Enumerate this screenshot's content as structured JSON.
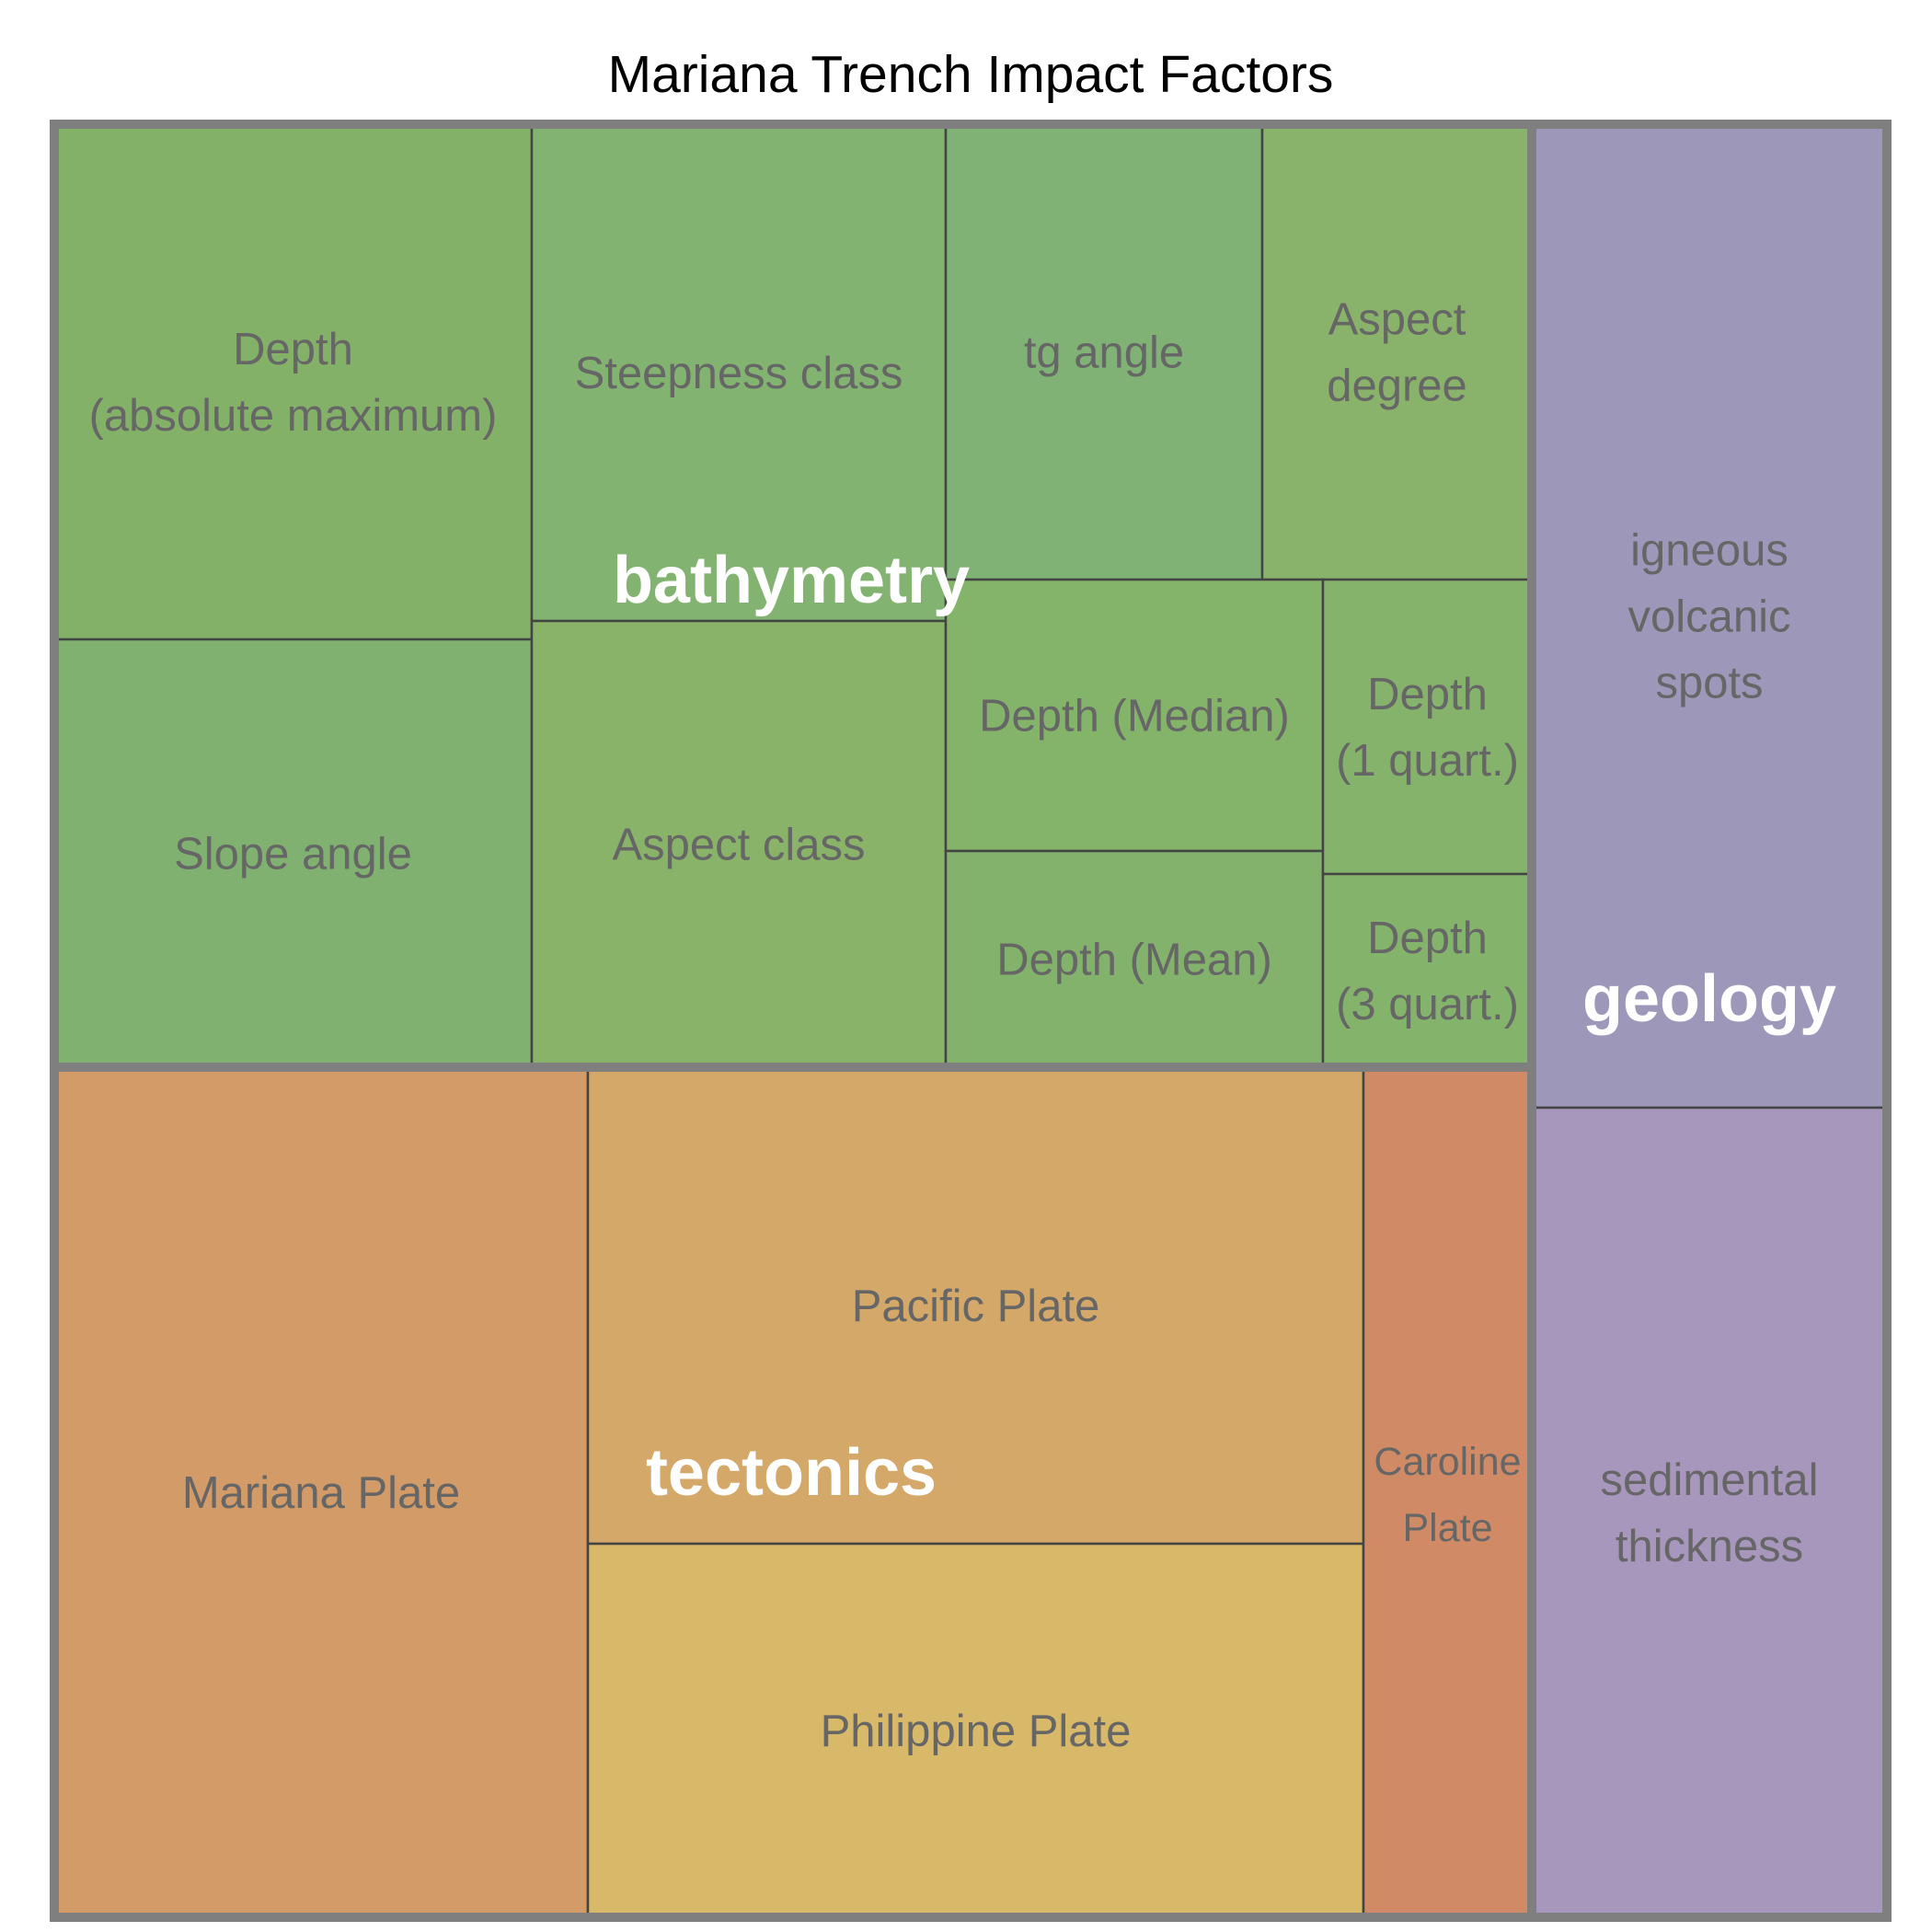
{
  "chart_data": {
    "type": "treemap",
    "title": "Mariana Trench Impact Factors",
    "groups": [
      {
        "name": "bathymetry",
        "leaves": [
          {
            "label": [
              "Depth",
              "(absolute maximum)"
            ],
            "color": "#84b168"
          },
          {
            "label": [
              "Slope angle"
            ],
            "color": "#80b170"
          },
          {
            "label": [
              "Steepness class"
            ],
            "color": "#83b371"
          },
          {
            "label": [
              "Aspect class"
            ],
            "color": "#89b369"
          },
          {
            "label": [
              "tg angle"
            ],
            "color": "#81b275"
          },
          {
            "label": [
              "Aspect",
              "degree"
            ],
            "color": "#89b36a"
          },
          {
            "label": [
              "Depth (Median)"
            ],
            "color": "#84b36a"
          },
          {
            "label": [
              "Depth (Mean)"
            ],
            "color": "#82b26b"
          },
          {
            "label": [
              "Depth",
              "(1 quart.)"
            ],
            "color": "#86b36b"
          },
          {
            "label": [
              "Depth",
              "(3 quart.)"
            ],
            "color": "#84b36c"
          }
        ]
      },
      {
        "name": "tectonics",
        "leaves": [
          {
            "label": [
              "Mariana Plate"
            ],
            "color": "#d29b67"
          },
          {
            "label": [
              "Pacific Plate"
            ],
            "color": "#d4a868"
          },
          {
            "label": [
              "Philippine Plate"
            ],
            "color": "#d8b869"
          },
          {
            "label": [
              "Caroline",
              "Plate"
            ],
            "color": "#d08b66"
          }
        ]
      },
      {
        "name": "geology",
        "leaves": [
          {
            "label": [
              "igneous",
              "volcanic",
              "spots"
            ],
            "color": "#9d97ba"
          },
          {
            "label": [
              "sedimental",
              "thickness"
            ],
            "color": "#a797bc"
          }
        ]
      }
    ]
  }
}
